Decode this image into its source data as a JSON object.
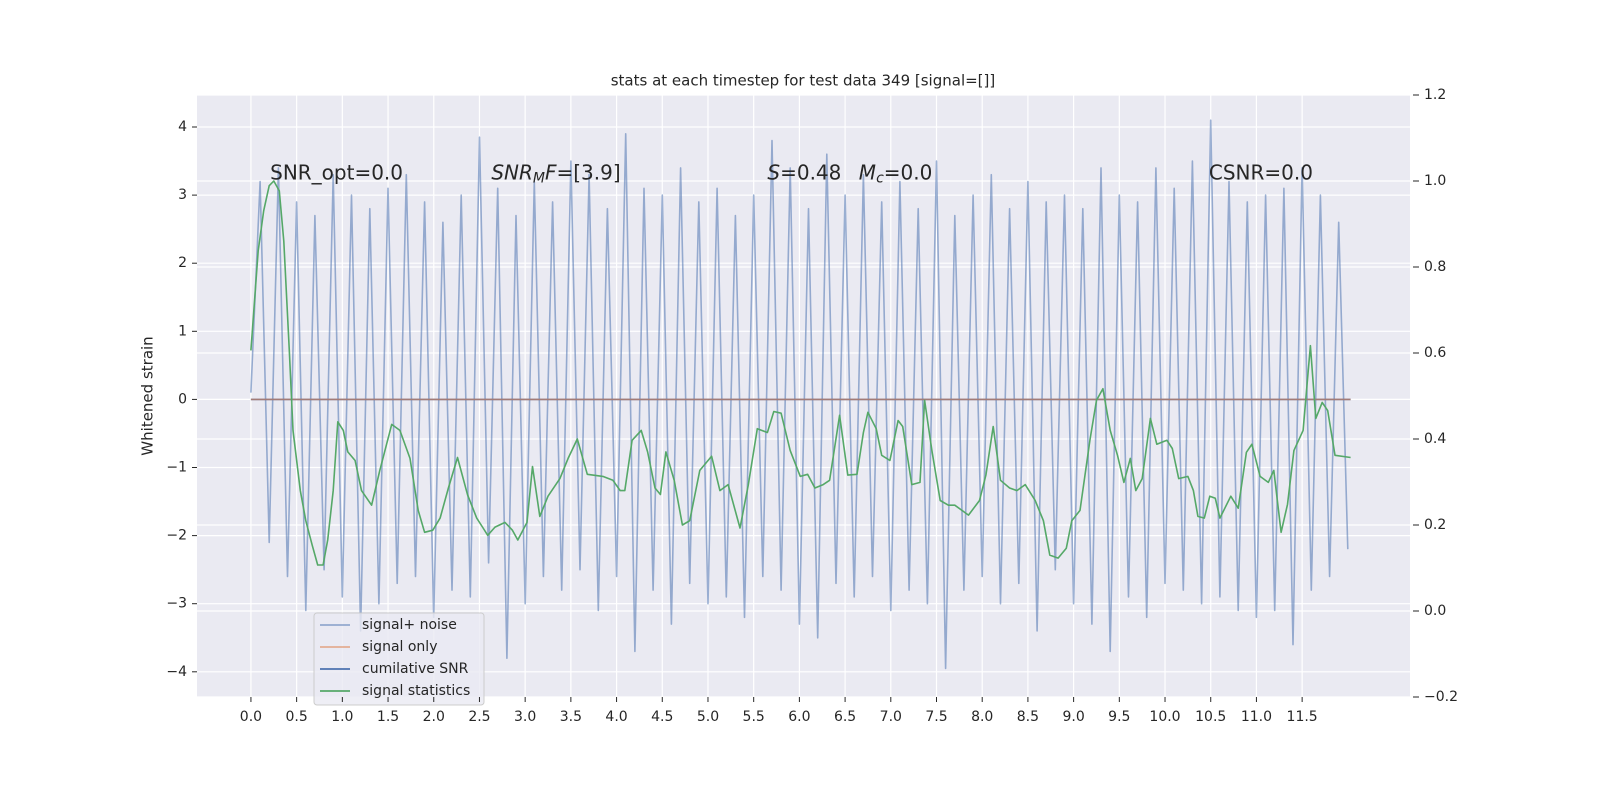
{
  "chart_data": {
    "type": "line",
    "title": "stats at each timestep for test data 349 [signal=[]]",
    "y_label": "Whitened strain",
    "xlim": [
      -0.59,
      12.68
    ],
    "ylim": [
      -4.37,
      4.47
    ],
    "y2lim": [
      -0.2,
      1.2
    ],
    "grid": true,
    "legend": "lower left",
    "xticks": [
      {
        "value": 0,
        "label": "0.0"
      },
      0.5,
      {
        "value": 1,
        "label": "1.0"
      },
      1.5,
      {
        "value": 2,
        "label": "2.0"
      },
      2.5,
      {
        "value": 3,
        "label": "3.0"
      },
      3.5,
      {
        "value": 4,
        "label": "4.0"
      },
      4.5,
      {
        "value": 5,
        "label": "5.0"
      },
      5.5,
      {
        "value": 6,
        "label": "6.0"
      },
      6.5,
      {
        "value": 7,
        "label": "7.0"
      },
      7.5,
      {
        "value": 8,
        "label": "8.0"
      },
      8.5,
      {
        "value": 9,
        "label": "9.0"
      },
      9.5,
      {
        "value": 10,
        "label": "10.0"
      },
      10.5,
      {
        "value": 11,
        "label": "11.0"
      },
      11.5
    ],
    "yticks": [
      {
        "value": -4,
        "label": "−4"
      },
      {
        "value": -3,
        "label": "−3"
      },
      {
        "value": -2,
        "label": "−2"
      },
      {
        "value": -1,
        "label": "−1"
      },
      0,
      1,
      2,
      3,
      4
    ],
    "y2ticks": [
      {
        "value": -0.2,
        "label": "−0.2"
      },
      {
        "value": 0,
        "label": "0.0"
      },
      0.2,
      0.4,
      0.6,
      0.8,
      {
        "value": 1,
        "label": "1.0"
      },
      1.2
    ],
    "annotations": [
      {
        "x": 0.21,
        "y": 3.32,
        "parts": [
          {
            "text": "SNR_opt=0.0"
          }
        ]
      },
      {
        "x": 2.63,
        "y": 3.32,
        "parts": [
          {
            "text": "SNR",
            "italic": true
          },
          {
            "text": "M",
            "italic": true,
            "sub": true
          },
          {
            "text": "F",
            "italic": true
          },
          {
            "text": "=[3.9]"
          }
        ]
      },
      {
        "x": 5.65,
        "y": 3.32,
        "parts": [
          {
            "text": "S",
            "italic": true
          },
          {
            "text": "=0.48"
          }
        ]
      },
      {
        "x": 6.65,
        "y": 3.32,
        "parts": [
          {
            "text": "M",
            "italic": true
          },
          {
            "text": "c",
            "italic": true,
            "sub": true
          },
          {
            "text": "=0.0"
          }
        ]
      },
      {
        "x": 10.48,
        "y": 3.32,
        "parts": [
          {
            "text": "CSNR=0.0"
          }
        ]
      }
    ],
    "series": [
      {
        "name": "signal+ noise",
        "color": "#4c72b0",
        "alpha": 0.55,
        "x": [
          0,
          0.1,
          0.2,
          0.3,
          0.4,
          0.5,
          0.6,
          0.7,
          0.8,
          0.9,
          1,
          1.1,
          1.2,
          1.3,
          1.4,
          1.5,
          1.6,
          1.7,
          1.8,
          1.9,
          2,
          2.1,
          2.2,
          2.3,
          2.4,
          2.5,
          2.6,
          2.7,
          2.8,
          2.9,
          3,
          3.1,
          3.2,
          3.3,
          3.4,
          3.5,
          3.6,
          3.7,
          3.8,
          3.9,
          4,
          4.1,
          4.2,
          4.3,
          4.4,
          4.5,
          4.6,
          4.7,
          4.8,
          4.9,
          5,
          5.1,
          5.2,
          5.3,
          5.4,
          5.5,
          5.6,
          5.7,
          5.8,
          5.9,
          6,
          6.1,
          6.2,
          6.3,
          6.4,
          6.5,
          6.6,
          6.7,
          6.8,
          6.9,
          7,
          7.1,
          7.2,
          7.3,
          7.4,
          7.5,
          7.6,
          7.7,
          7.8,
          7.9,
          8,
          8.1,
          8.2,
          8.3,
          8.4,
          8.5,
          8.6,
          8.7,
          8.8,
          8.9,
          9,
          9.1,
          9.2,
          9.3,
          9.4,
          9.5,
          9.6,
          9.7,
          9.8,
          9.9,
          10,
          10.1,
          10.2,
          10.3,
          10.4,
          10.5,
          10.6,
          10.7,
          10.8,
          10.9,
          11,
          11.1,
          11.2,
          11.3,
          11.4,
          11.5,
          11.6,
          11.7,
          11.8,
          11.9,
          12
        ],
        "values": [
          0.1,
          3.2,
          -2.1,
          3.4,
          -2.6,
          2.9,
          -3.1,
          2.7,
          -2.5,
          3.3,
          -2.9,
          3.0,
          -3.4,
          2.8,
          -3.0,
          3.1,
          -2.7,
          3.3,
          -2.6,
          2.9,
          -3.2,
          2.6,
          -2.8,
          3.0,
          -2.9,
          3.85,
          -2.4,
          3.1,
          -3.8,
          2.7,
          -3.0,
          3.2,
          -2.6,
          2.9,
          -2.8,
          3.5,
          -2.5,
          3.3,
          -3.1,
          2.8,
          -2.6,
          3.9,
          -3.7,
          3.1,
          -2.8,
          3.0,
          -3.3,
          3.4,
          -2.7,
          2.9,
          -3.0,
          3.1,
          -2.9,
          2.7,
          -3.2,
          3.0,
          -2.6,
          3.8,
          -2.8,
          3.4,
          -3.3,
          2.8,
          -3.5,
          3.6,
          -2.7,
          3.0,
          -2.9,
          3.3,
          -2.6,
          2.9,
          -3.1,
          3.2,
          -2.8,
          2.8,
          -3.0,
          3.5,
          -3.95,
          2.7,
          -2.8,
          3.0,
          -2.6,
          3.3,
          -3.0,
          2.8,
          -2.7,
          3.2,
          -3.4,
          2.9,
          -2.5,
          3.0,
          -3.0,
          2.8,
          -3.3,
          3.4,
          -3.7,
          3.0,
          -2.9,
          2.9,
          -3.2,
          3.4,
          -2.7,
          3.1,
          -2.8,
          3.5,
          -3.0,
          4.1,
          -2.9,
          3.2,
          -3.1,
          2.9,
          -3.2,
          3.0,
          -3.1,
          3.1,
          -3.6,
          3.4,
          -2.8,
          3.0,
          -2.6,
          2.6,
          -2.2
        ]
      },
      {
        "name": "cumilative SNR",
        "color": "#4c72b0",
        "alpha": 1,
        "x": [
          0,
          12.03
        ],
        "values": [
          0,
          0
        ]
      },
      {
        "name": "signal only",
        "color": "#dd8452",
        "alpha": 0.6,
        "x": [
          0,
          12.03
        ],
        "values": [
          0,
          0
        ]
      },
      {
        "name": "signal statistics",
        "color": "#55a868",
        "alpha": 1,
        "axis": "y2",
        "x": [
          0,
          0.08,
          0.14,
          0.2,
          0.25,
          0.31,
          0.36,
          0.42,
          0.46,
          0.54,
          0.6,
          0.67,
          0.73,
          0.79,
          0.84,
          0.9,
          0.95,
          1.01,
          1.06,
          1.14,
          1.21,
          1.32,
          1.41,
          1.54,
          1.63,
          1.74,
          1.83,
          1.9,
          1.99,
          2.07,
          2.16,
          2.26,
          2.37,
          2.47,
          2.54,
          2.59,
          2.67,
          2.78,
          2.86,
          2.92,
          3.02,
          3.08,
          3.16,
          3.25,
          3.38,
          3.47,
          3.57,
          3.68,
          3.85,
          3.96,
          4.04,
          4.09,
          4.17,
          4.27,
          4.34,
          4.42,
          4.48,
          4.54,
          4.63,
          4.72,
          4.8,
          4.91,
          5.04,
          5.13,
          5.22,
          5.35,
          5.44,
          5.54,
          5.65,
          5.72,
          5.8,
          5.9,
          6.01,
          6.09,
          6.17,
          6.26,
          6.33,
          6.44,
          6.53,
          6.63,
          6.7,
          6.75,
          6.84,
          6.9,
          6.99,
          7.08,
          7.13,
          7.23,
          7.32,
          7.37,
          7.45,
          7.54,
          7.63,
          7.7,
          7.85,
          7.97,
          8.04,
          8.12,
          8.2,
          8.3,
          8.38,
          8.47,
          8.58,
          8.67,
          8.74,
          8.83,
          8.92,
          8.98,
          9.07,
          9.18,
          9.25,
          9.32,
          9.4,
          9.48,
          9.55,
          9.62,
          9.68,
          9.75,
          9.84,
          9.91,
          10.02,
          10.08,
          10.15,
          10.25,
          10.31,
          10.36,
          10.43,
          10.49,
          10.55,
          10.6,
          10.72,
          10.8,
          10.89,
          10.95,
          11.04,
          11.13,
          11.19,
          11.27,
          11.34,
          11.41,
          11.51,
          11.59,
          11.65,
          11.72,
          11.78,
          11.86,
          12.03
        ],
        "values": [
          0.606,
          0.838,
          0.931,
          0.989,
          1.0,
          0.977,
          0.86,
          0.606,
          0.42,
          0.28,
          0.21,
          0.153,
          0.107,
          0.107,
          0.165,
          0.28,
          0.44,
          0.42,
          0.37,
          0.35,
          0.28,
          0.246,
          0.327,
          0.434,
          0.42,
          0.355,
          0.234,
          0.183,
          0.188,
          0.216,
          0.286,
          0.357,
          0.27,
          0.216,
          0.193,
          0.176,
          0.195,
          0.206,
          0.188,
          0.165,
          0.206,
          0.336,
          0.22,
          0.267,
          0.308,
          0.355,
          0.4,
          0.318,
          0.313,
          0.304,
          0.28,
          0.28,
          0.397,
          0.42,
          0.37,
          0.286,
          0.271,
          0.37,
          0.304,
          0.2,
          0.21,
          0.327,
          0.36,
          0.28,
          0.294,
          0.193,
          0.292,
          0.424,
          0.415,
          0.464,
          0.46,
          0.373,
          0.313,
          0.318,
          0.286,
          0.294,
          0.304,
          0.455,
          0.316,
          0.318,
          0.415,
          0.462,
          0.424,
          0.362,
          0.35,
          0.443,
          0.429,
          0.294,
          0.299,
          0.49,
          0.373,
          0.257,
          0.246,
          0.246,
          0.223,
          0.257,
          0.316,
          0.429,
          0.304,
          0.286,
          0.28,
          0.294,
          0.257,
          0.21,
          0.13,
          0.123,
          0.146,
          0.21,
          0.234,
          0.4,
          0.49,
          0.517,
          0.42,
          0.362,
          0.299,
          0.355,
          0.28,
          0.308,
          0.448,
          0.388,
          0.397,
          0.378,
          0.308,
          0.313,
          0.28,
          0.22,
          0.216,
          0.267,
          0.262,
          0.216,
          0.267,
          0.239,
          0.369,
          0.388,
          0.313,
          0.299,
          0.327,
          0.183,
          0.248,
          0.373,
          0.42,
          0.617,
          0.448,
          0.485,
          0.466,
          0.362,
          0.357
        ]
      }
    ]
  }
}
